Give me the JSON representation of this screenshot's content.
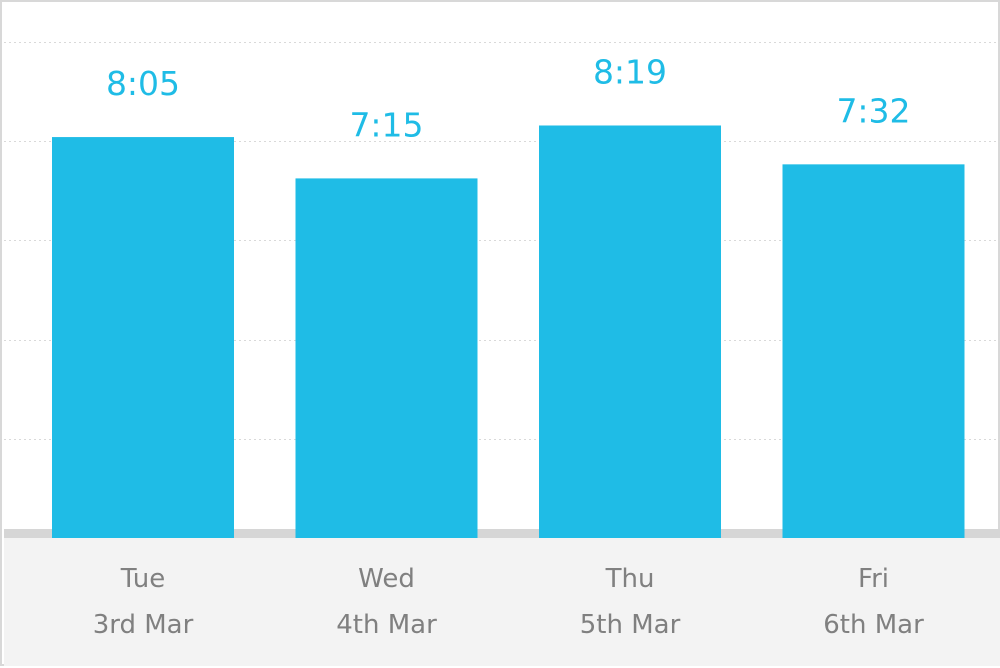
{
  "chart_data": {
    "type": "bar",
    "categories": [
      {
        "day": "Tue",
        "date": "3rd Mar"
      },
      {
        "day": "Wed",
        "date": "4th Mar"
      },
      {
        "day": "Thu",
        "date": "5th Mar"
      },
      {
        "day": "Fri",
        "date": "6th Mar"
      }
    ],
    "value_labels": [
      "8:05",
      "7:15",
      "8:19",
      "7:32"
    ],
    "values": [
      8.0833,
      7.25,
      8.3167,
      7.5333
    ],
    "value_unit": "hours",
    "ylim": [
      0,
      10.5
    ],
    "grid": true,
    "bar_color": "#1fbce6",
    "label_color": "#1fbce6",
    "axis_text_color": "#808080",
    "footer_color": "#f3f3f3",
    "title": "",
    "xlabel": "",
    "ylabel": ""
  }
}
